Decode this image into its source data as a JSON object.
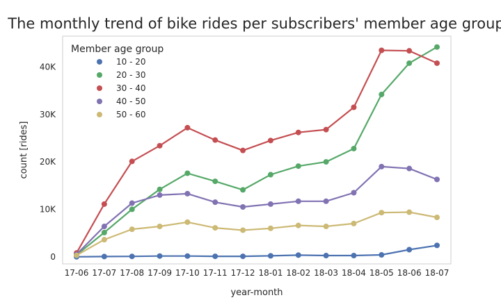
{
  "chart_data": {
    "type": "line",
    "title": "The monthly trend of bike rides per subscribers' member age group",
    "xlabel": "year-month",
    "ylabel": "count [rides]",
    "categories": [
      "17-06",
      "17-07",
      "17-08",
      "17-09",
      "17-10",
      "17-11",
      "17-12",
      "18-01",
      "18-02",
      "18-03",
      "18-04",
      "18-05",
      "18-06",
      "18-07"
    ],
    "ylim": [
      -1500,
      46500
    ],
    "yticks": [
      0,
      10000,
      20000,
      30000,
      40000
    ],
    "ytick_labels": [
      "0",
      "10K",
      "20K",
      "30K",
      "40K"
    ],
    "grid": false,
    "legend": {
      "title": "Member age group",
      "position": "top-left"
    },
    "series": [
      {
        "name": "10 - 20",
        "color": "#4c72b0",
        "values": [
          0,
          50,
          80,
          150,
          150,
          100,
          100,
          200,
          350,
          250,
          250,
          400,
          1500,
          2400
        ]
      },
      {
        "name": "20 - 30",
        "color": "#55a868",
        "values": [
          400,
          5100,
          10000,
          14200,
          17600,
          15900,
          14100,
          17300,
          19100,
          20000,
          22800,
          34200,
          40800,
          44200
        ]
      },
      {
        "name": "30 - 40",
        "color": "#c44e52",
        "values": [
          800,
          11100,
          20100,
          23400,
          27200,
          24600,
          22400,
          24500,
          26200,
          26800,
          31500,
          43500,
          43400,
          40800
        ]
      },
      {
        "name": "40 - 50",
        "color": "#8172b2",
        "values": [
          500,
          6400,
          11300,
          13000,
          13300,
          11500,
          10500,
          11100,
          11700,
          11700,
          13500,
          19000,
          18600,
          16300
        ]
      },
      {
        "name": "50 - 60",
        "color": "#ccb974",
        "values": [
          300,
          3600,
          5800,
          6400,
          7300,
          6100,
          5600,
          6000,
          6600,
          6400,
          7000,
          9300,
          9400,
          8300
        ]
      }
    ]
  }
}
